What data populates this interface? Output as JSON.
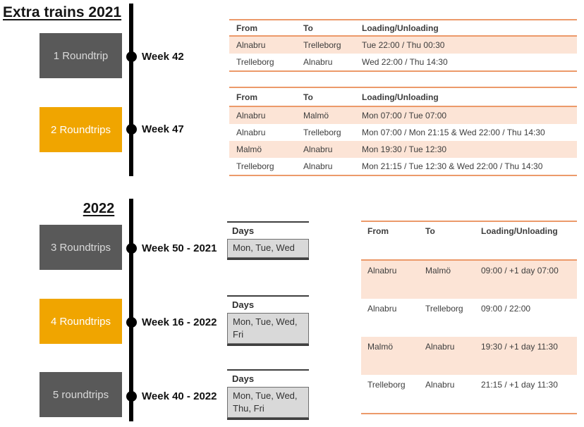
{
  "colors": {
    "amber": "#F0A500",
    "dkgray": "#595959",
    "peach": "#FCE4D6",
    "oborder": "#EC9A6A",
    "daysfill": "#D9D9D9",
    "timeline": "#000000"
  },
  "titles": {
    "s2021": "Extra trains 2021",
    "s2022": "2022"
  },
  "days_header": "Days",
  "timeline2021": [
    {
      "box": "1 Roundtrip",
      "week": "Week 42"
    },
    {
      "box": "2 Roundtrips",
      "week": "Week 47"
    }
  ],
  "timeline2022": [
    {
      "box": "3 Roundtrips",
      "week": "Week 50 - 2021",
      "days": "Mon, Tue, Wed"
    },
    {
      "box": "4 Roundtrips",
      "week": "Week 16 - 2022",
      "days": "Mon, Tue, Wed, Fri"
    },
    {
      "box": "5 roundtrips",
      "week": "Week 40 - 2022",
      "days": "Mon, Tue, Wed, Thu, Fri"
    }
  ],
  "table1": {
    "headers": [
      "From",
      "To",
      "Loading/Unloading"
    ],
    "rows": [
      [
        "Alnabru",
        "Trelleborg",
        "Tue 22:00 / Thu 00:30"
      ],
      [
        "Trelleborg",
        "Alnabru",
        "Wed 22:00 / Thu 14:30"
      ]
    ]
  },
  "table2": {
    "headers": [
      "From",
      "To",
      "Loading/Unloading"
    ],
    "rows": [
      [
        "Alnabru",
        "Malmö",
        "Mon 07:00 / Tue 07:00"
      ],
      [
        "Alnabru",
        "Trelleborg",
        "Mon 07:00 / Mon 21:15 & Wed 22:00 / Thu 14:30"
      ],
      [
        "Malmö",
        "Alnabru",
        "Mon 19:30 / Tue 12:30"
      ],
      [
        "Trelleborg",
        "Alnabru",
        "Mon 21:15 / Tue 12:30 & Wed 22:00 / Thu 14:30"
      ]
    ]
  },
  "table3": {
    "headers": [
      "From",
      "To",
      "Loading/Unloading"
    ],
    "rows": [
      [
        "Alnabru",
        "Malmö",
        "09:00 / +1 day 07:00"
      ],
      [
        "Alnabru",
        "Trelleborg",
        "09:00 / 22:00"
      ],
      [
        "Malmö",
        "Alnabru",
        "19:30 / +1 day 11:30"
      ],
      [
        "Trelleborg",
        "Alnabru",
        "21:15 / +1 day 11:30"
      ]
    ]
  }
}
